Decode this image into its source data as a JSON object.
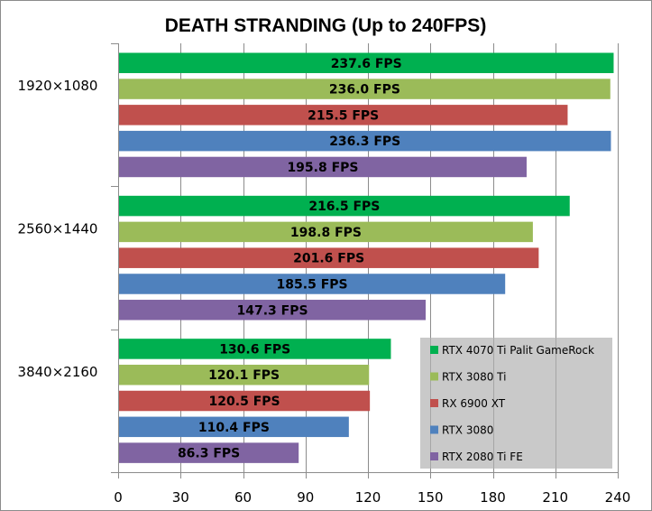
{
  "chart_data": {
    "type": "bar",
    "orientation": "horizontal",
    "title": "DEATH STRANDING (Up to 240FPS)",
    "xlabel": "",
    "ylabel": "",
    "xlim": [
      0,
      240
    ],
    "xticks": [
      0,
      30,
      60,
      90,
      120,
      150,
      180,
      210,
      240
    ],
    "grid": true,
    "legend_position": "bottom-right",
    "categories": [
      "1920×1080",
      "2560×1440",
      "3840×2160"
    ],
    "series": [
      {
        "name": "RTX 4070 Ti Palit GameRock",
        "color": "#00b050",
        "values": [
          237.6,
          216.5,
          130.6
        ],
        "labels": [
          "237.6 FPS",
          "216.5 FPS",
          "130.6 FPS"
        ]
      },
      {
        "name": "RTX 3080 Ti",
        "color": "#9bbb59",
        "values": [
          236.0,
          198.8,
          120.1
        ],
        "labels": [
          "236.0 FPS",
          "198.8 FPS",
          "120.1 FPS"
        ]
      },
      {
        "name": "RX 6900 XT",
        "color": "#c0504d",
        "values": [
          215.5,
          201.6,
          120.5
        ],
        "labels": [
          "215.5 FPS",
          "201.6 FPS",
          "120.5 FPS"
        ]
      },
      {
        "name": "RTX 3080",
        "color": "#4f81bd",
        "values": [
          236.3,
          185.5,
          110.4
        ],
        "labels": [
          "236.3 FPS",
          "185.5 FPS",
          "110.4 FPS"
        ]
      },
      {
        "name": "RTX 2080 Ti FE",
        "color": "#8064a2",
        "values": [
          195.8,
          147.3,
          86.3
        ],
        "labels": [
          "195.8 FPS",
          "147.3 FPS",
          "86.3 FPS"
        ]
      }
    ]
  }
}
